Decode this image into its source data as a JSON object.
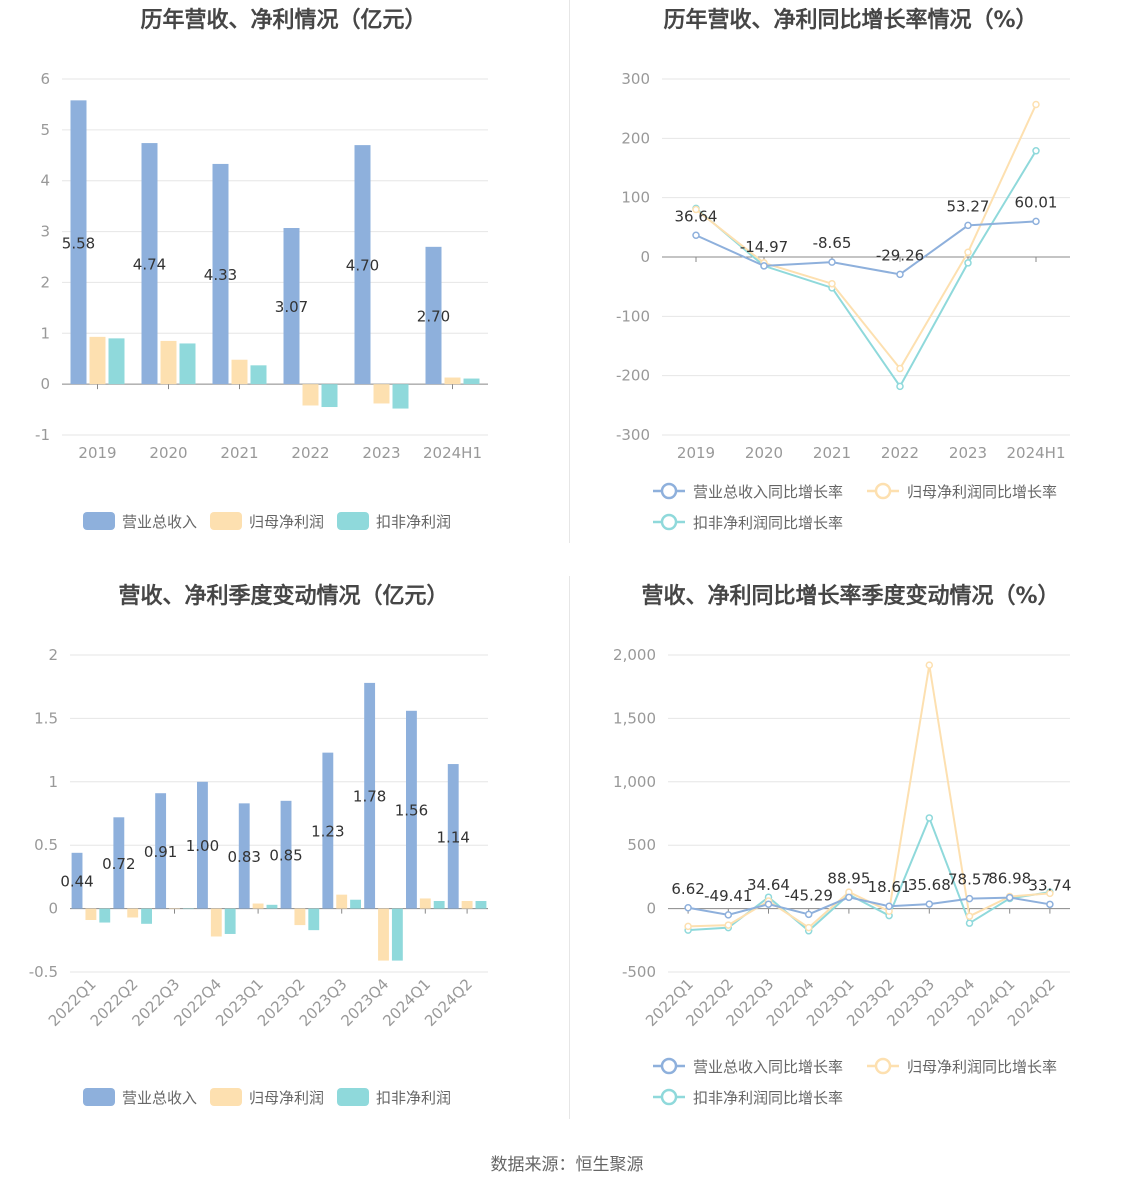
{
  "source": "数据来源：恒生聚源",
  "colors": {
    "revenue": "#8eb0dc",
    "net": "#fde0b0",
    "deducted": "#8fd9db",
    "axis": "#999999",
    "grid": "#e6e6e6",
    "label": "#333333"
  },
  "legend": {
    "revenue": "营业总收入",
    "net": "归母净利润",
    "deducted": "扣非净利润",
    "revenue_growth": "营业总收入同比增长率",
    "net_growth": "归母净利润同比增长率",
    "deducted_growth": "扣非净利润同比增长率"
  },
  "chart_data": [
    {
      "type": "bar",
      "title": "历年营收、净利情况（亿元）",
      "categories": [
        "2019",
        "2020",
        "2021",
        "2022",
        "2023",
        "2024H1"
      ],
      "series": [
        {
          "name": "营业总收入",
          "values": [
            5.58,
            4.74,
            4.33,
            3.07,
            4.7,
            2.7
          ]
        },
        {
          "name": "归母净利润",
          "values": [
            0.93,
            0.85,
            0.48,
            -0.42,
            -0.38,
            0.13
          ]
        },
        {
          "name": "扣非净利润",
          "values": [
            0.9,
            0.8,
            0.37,
            -0.45,
            -0.48,
            0.11
          ]
        }
      ],
      "data_labels": [
        "5.58",
        "4.74",
        "4.33",
        "3.07",
        "4.70",
        "2.70"
      ],
      "ylim": [
        -1,
        6
      ],
      "yticks": [
        "6",
        "5",
        "4",
        "3",
        "2",
        "1",
        "0",
        "-1"
      ]
    },
    {
      "type": "line",
      "title": "历年营收、净利同比增长率情况（%）",
      "categories": [
        "2019",
        "2020",
        "2021",
        "2022",
        "2023",
        "2024H1"
      ],
      "series": [
        {
          "name": "营业总收入同比增长率",
          "values": [
            36.64,
            -14.97,
            -8.65,
            -29.26,
            53.27,
            60.01
          ]
        },
        {
          "name": "归母净利润同比增长率",
          "values": [
            80,
            -10,
            -45,
            -188,
            8,
            257
          ]
        },
        {
          "name": "扣非净利润同比增长率",
          "values": [
            82,
            -15,
            -52,
            -218,
            -10,
            179
          ]
        }
      ],
      "data_labels": [
        "36.64",
        "-14.97",
        "-8.65",
        "-29.26",
        "53.27",
        "60.01"
      ],
      "ylim": [
        -300,
        300
      ],
      "yticks": [
        "300",
        "200",
        "100",
        "0",
        "-100",
        "-200",
        "-300"
      ]
    },
    {
      "type": "bar",
      "title": "营收、净利季度变动情况（亿元）",
      "categories": [
        "2022Q1",
        "2022Q2",
        "2022Q3",
        "2022Q4",
        "2023Q1",
        "2023Q2",
        "2023Q3",
        "2023Q4",
        "2024Q1",
        "2024Q2"
      ],
      "series": [
        {
          "name": "营业总收入",
          "values": [
            0.44,
            0.72,
            0.91,
            1.0,
            0.83,
            0.85,
            1.23,
            1.78,
            1.56,
            1.14
          ]
        },
        {
          "name": "归母净利润",
          "values": [
            -0.09,
            -0.07,
            0.0,
            -0.22,
            0.04,
            -0.13,
            0.11,
            -0.41,
            0.08,
            0.06
          ]
        },
        {
          "name": "扣非净利润",
          "values": [
            -0.11,
            -0.12,
            0.0,
            -0.2,
            0.03,
            -0.17,
            0.07,
            -0.41,
            0.06,
            0.06
          ]
        }
      ],
      "data_labels": [
        "0.44",
        "0.72",
        "0.91",
        "1.00",
        "0.83",
        "0.85",
        "1.23",
        "1.78",
        "1.56",
        "1.14"
      ],
      "ylim": [
        -0.5,
        2
      ],
      "yticks": [
        "2",
        "1.5",
        "1",
        "0.5",
        "0",
        "-0.5"
      ]
    },
    {
      "type": "line",
      "title": "营收、净利同比增长率季度变动情况（%）",
      "categories": [
        "2022Q1",
        "2022Q2",
        "2022Q3",
        "2022Q4",
        "2023Q1",
        "2023Q2",
        "2023Q3",
        "2023Q4",
        "2024Q1",
        "2024Q2"
      ],
      "series": [
        {
          "name": "营业总收入同比增长率",
          "values": [
            6.62,
            -49.41,
            34.64,
            -45.29,
            88.95,
            18.61,
            35.68,
            78.57,
            86.98,
            33.74
          ]
        },
        {
          "name": "归母净利润同比增长率",
          "values": [
            -140,
            -130,
            60,
            -150,
            130,
            -20,
            1920,
            -60,
            95,
            120
          ]
        },
        {
          "name": "扣非净利润同比增长率",
          "values": [
            -170,
            -150,
            90,
            -175,
            110,
            -55,
            715,
            -115,
            80,
            130
          ]
        }
      ],
      "data_labels": [
        "6.62",
        "-49.41",
        "34.64",
        "-45.29",
        "88.95",
        "18.61",
        "35.68",
        "78.57",
        "86.98",
        "33.74"
      ],
      "ylim": [
        -500,
        2000
      ],
      "yticks": [
        "2,000",
        "1,500",
        "1,000",
        "500",
        "0",
        "-500"
      ]
    }
  ]
}
